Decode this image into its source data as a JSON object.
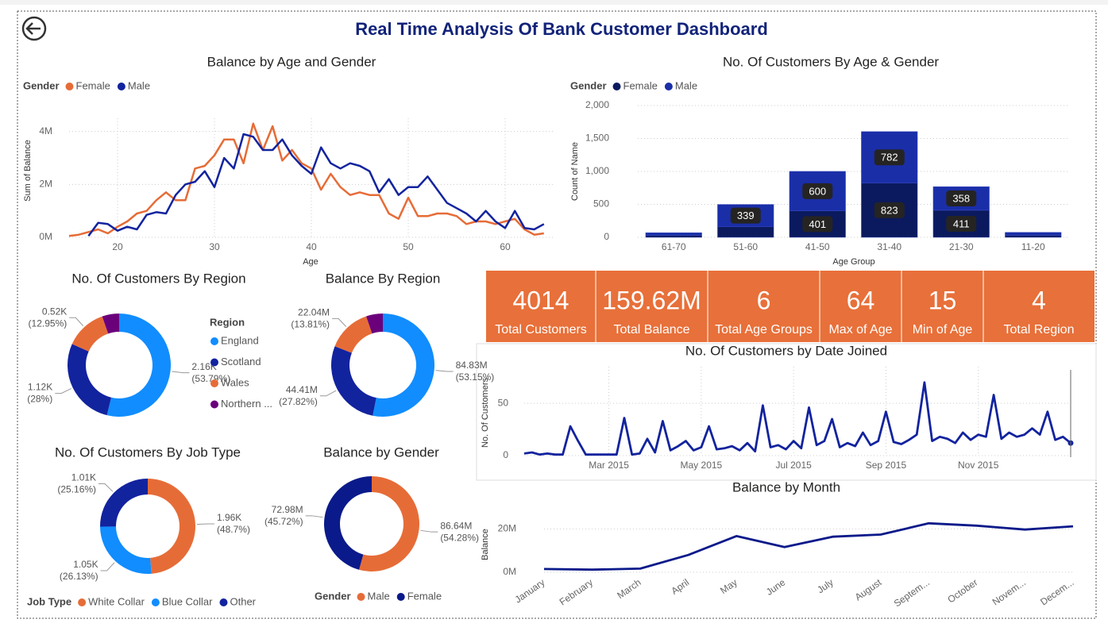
{
  "title": "Real Time Analysis Of Bank Customer Dashboard",
  "kpis": [
    {
      "value": "4014",
      "label": "Total Customers"
    },
    {
      "value": "159.62M",
      "label": "Total Balance"
    },
    {
      "value": "6",
      "label": "Total Age Groups"
    },
    {
      "value": "64",
      "label": "Max of Age"
    },
    {
      "value": "15",
      "label": "Min of Age"
    },
    {
      "value": "4",
      "label": "Total Region"
    }
  ],
  "chart_data": [
    {
      "type": "line",
      "title": "Balance by Age and Gender",
      "x_label": "Age",
      "y_label": "Sum of Balance",
      "legend_title": "Gender",
      "grid": true,
      "x": [
        15,
        16,
        17,
        18,
        19,
        20,
        21,
        22,
        23,
        24,
        25,
        26,
        27,
        28,
        29,
        30,
        31,
        32,
        33,
        34,
        35,
        36,
        37,
        38,
        39,
        40,
        41,
        42,
        43,
        44,
        45,
        46,
        47,
        48,
        49,
        50,
        51,
        52,
        53,
        54,
        55,
        56,
        57,
        58,
        59,
        60,
        61,
        62,
        63,
        64
      ],
      "xlim": [
        15,
        65
      ],
      "xticks": [
        20,
        30,
        40,
        50,
        60
      ],
      "ylim": [
        0,
        4500000
      ],
      "yticks": [
        {
          "value": 0,
          "label": "0M"
        },
        {
          "value": 2000000,
          "label": "2M"
        },
        {
          "value": 4000000,
          "label": "4M"
        }
      ],
      "series": [
        {
          "name": "Female",
          "color": "#e66c37",
          "values": [
            50000,
            100000,
            200000,
            300000,
            150000,
            400000,
            600000,
            900000,
            1000000,
            1400000,
            1700000,
            1400000,
            1400000,
            2600000,
            2700000,
            3100000,
            3700000,
            3700000,
            2800000,
            4300000,
            3300000,
            4200000,
            2900000,
            3300000,
            2800000,
            2600000,
            1800000,
            2400000,
            1900000,
            1600000,
            1700000,
            1600000,
            1600000,
            900000,
            700000,
            1500000,
            800000,
            800000,
            900000,
            900000,
            800000,
            500000,
            600000,
            600000,
            500000,
            600000,
            700000,
            300000,
            100000,
            150000
          ]
        },
        {
          "name": "Male",
          "color": "#12239e",
          "values": [
            null,
            null,
            50000,
            550000,
            500000,
            250000,
            400000,
            300000,
            850000,
            950000,
            900000,
            1600000,
            2000000,
            2100000,
            2500000,
            1900000,
            3000000,
            2600000,
            3900000,
            3800000,
            3300000,
            3300000,
            3700000,
            3100000,
            2700000,
            2400000,
            3400000,
            2800000,
            2600000,
            2800000,
            2700000,
            2500000,
            1700000,
            2200000,
            1600000,
            1900000,
            1900000,
            2300000,
            1800000,
            1300000,
            1100000,
            900000,
            600000,
            1000000,
            600000,
            350000,
            1000000,
            350000,
            300000,
            500000
          ]
        }
      ]
    },
    {
      "type": "stacked-bar",
      "title": "No. Of Customers By Age & Gender",
      "x_label": "Age Group",
      "y_label": "Count of Name",
      "legend_title": "Gender",
      "grid": true,
      "categories": [
        "61-70",
        "51-60",
        "41-50",
        "31-40",
        "21-30",
        "11-20"
      ],
      "ylim": [
        0,
        2000
      ],
      "yticks": [
        0,
        500,
        {
          "value": 1000,
          "label": "1,000"
        },
        {
          "value": 1500,
          "label": "1,500"
        },
        {
          "value": 2000,
          "label": "2,000"
        }
      ],
      "series": [
        {
          "name": "Female",
          "color": "#0b1a5e",
          "values": [
            30,
            160,
            401,
            823,
            411,
            30
          ]
        },
        {
          "name": "Male",
          "color": "#1a2ea8",
          "values": [
            40,
            339,
            600,
            782,
            358,
            45
          ]
        }
      ]
    },
    {
      "type": "donut",
      "title": "No. Of Customers By Region",
      "legend_title": "Region",
      "categories": [
        "England",
        "Scotland",
        "Wales",
        "Northern ..."
      ],
      "values": [
        2160,
        1120,
        520,
        214
      ],
      "value_labels": [
        "2.16K",
        "1.12K",
        "0.52K",
        null
      ],
      "percent_labels": [
        "(53.79%)",
        "(28%)",
        "(12.95%)",
        null
      ],
      "colors": [
        "#118dff",
        "#12239e",
        "#e66c37",
        "#6b007b"
      ]
    },
    {
      "type": "donut",
      "title": "Balance By Region",
      "values": [
        84830000,
        44410000,
        22040000,
        8340000
      ],
      "value_labels": [
        "84.83M",
        "44.41M",
        "22.04M",
        null
      ],
      "percent_labels": [
        "(53.15%)",
        "(27.82%)",
        "(13.81%)",
        null
      ],
      "colors": [
        "#118dff",
        "#12239e",
        "#e66c37",
        "#6b007b"
      ]
    },
    {
      "type": "donut",
      "title": "No. Of Customers By Job Type",
      "legend_title": "Job Type",
      "categories": [
        "White Collar",
        "Blue Collar",
        "Other"
      ],
      "values": [
        1960,
        1050,
        1010
      ],
      "value_labels": [
        "1.96K",
        "1.05K",
        "1.01K"
      ],
      "percent_labels": [
        "(48.7%)",
        "(26.13%)",
        "(25.16%)"
      ],
      "colors": [
        "#e66c37",
        "#118dff",
        "#12239e"
      ]
    },
    {
      "type": "donut",
      "title": "Balance by Gender",
      "legend_title": "Gender",
      "categories": [
        "Male",
        "Female"
      ],
      "values": [
        86640000,
        72980000
      ],
      "value_labels": [
        "86.64M",
        "72.98M"
      ],
      "percent_labels": [
        "(54.28%)",
        "(45.72%)"
      ],
      "colors": [
        "#e66c37",
        "#0a1a8a"
      ]
    },
    {
      "type": "line",
      "title": "No. Of Customers by Date Joined",
      "y_label": "No. Of Customers",
      "grid": true,
      "color": "#12239e",
      "categories": [
        null,
        null,
        null,
        null,
        null,
        null,
        null,
        null,
        null,
        null,
        null,
        "Mar 2015",
        null,
        null,
        null,
        null,
        null,
        null,
        null,
        null,
        null,
        null,
        null,
        "May 2015",
        null,
        null,
        null,
        null,
        null,
        null,
        null,
        null,
        null,
        null,
        null,
        "Jul 2015",
        null,
        null,
        null,
        null,
        null,
        null,
        null,
        null,
        null,
        null,
        null,
        "Sep 2015",
        null,
        null,
        null,
        null,
        null,
        null,
        null,
        null,
        null,
        null,
        null,
        "Nov 2015",
        null,
        null,
        null,
        null,
        null,
        null,
        null,
        null,
        null,
        null,
        null,
        null
      ],
      "values": [
        2,
        3,
        1,
        2,
        1,
        1,
        28,
        14,
        1,
        1,
        1,
        1,
        1,
        36,
        1,
        2,
        16,
        3,
        33,
        5,
        9,
        14,
        5,
        8,
        28,
        6,
        7,
        9,
        5,
        12,
        4,
        48,
        8,
        10,
        6,
        14,
        7,
        46,
        10,
        14,
        35,
        8,
        12,
        9,
        22,
        10,
        14,
        42,
        13,
        11,
        15,
        20,
        70,
        14,
        18,
        16,
        12,
        22,
        15,
        20,
        18,
        58,
        16,
        22,
        18,
        20,
        26,
        20,
        42,
        15,
        18,
        12
      ],
      "ylim": [
        0,
        85
      ],
      "yticks": [
        0,
        50
      ]
    },
    {
      "type": "line",
      "title": "Balance by Month",
      "y_label": "Balance",
      "grid": true,
      "color": "#0a1a8a",
      "categories": [
        "January",
        "February",
        "March",
        "April",
        "May",
        "June",
        "July",
        "August",
        "Septem...",
        "October",
        "Novem...",
        "Decem..."
      ],
      "values": [
        1500000,
        1200000,
        1700000,
        8000000,
        16700000,
        11600000,
        16400000,
        17400000,
        22600000,
        21500000,
        19700000,
        21200000
      ],
      "ylim": [
        0,
        26000000
      ],
      "yticks": [
        {
          "value": 0,
          "label": "0M"
        },
        {
          "value": 20000000,
          "label": "20M"
        }
      ]
    }
  ]
}
